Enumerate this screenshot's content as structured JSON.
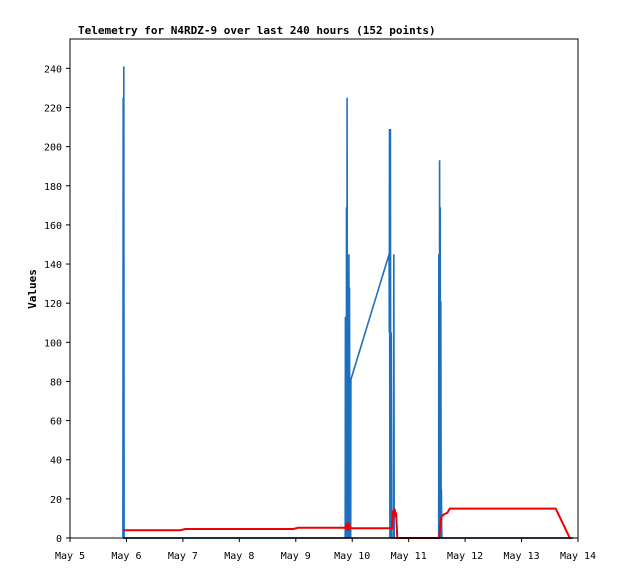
{
  "chart_data": {
    "type": "line",
    "title": "Telemetry for N4RDZ-9 over last 240 hours (152 points)",
    "xlabel": "",
    "ylabel": "Values",
    "x_ticks": [
      "May 5",
      "May 6",
      "May 7",
      "May 8",
      "May 9",
      "May 10",
      "May 11",
      "May 12",
      "May 13",
      "May 14"
    ],
    "y_ticks": [
      "0",
      "20",
      "40",
      "60",
      "80",
      "100",
      "120",
      "140",
      "160",
      "180",
      "200",
      "220",
      "240"
    ],
    "xlim": [
      "May 5 00:00",
      "May 14 00:00"
    ],
    "ylim": [
      0,
      255
    ],
    "grid": false,
    "series": [
      {
        "color": "#1f6fbf",
        "points": [
          [
            "May 5 22:30",
            0
          ],
          [
            "May 5 22:38",
            225
          ],
          [
            "May 5 22:45",
            0
          ],
          [
            "May 5 22:52",
            241
          ],
          [
            "May 5 23:00",
            0
          ],
          [
            "May 5 23:10",
            0
          ],
          [
            "May 9 21:00",
            0
          ],
          [
            "May 9 21:05",
            113
          ],
          [
            "May 9 21:15",
            0
          ],
          [
            "May 9 21:20",
            57
          ],
          [
            "May 9 21:30",
            0
          ],
          [
            "May 9 21:35",
            169
          ],
          [
            "May 9 21:45",
            0
          ],
          [
            "May 9 21:50",
            225
          ],
          [
            "May 9 22:00",
            0
          ],
          [
            "May 9 22:10",
            0
          ],
          [
            "May 9 22:20",
            0
          ],
          [
            "May 9 22:35",
            145
          ],
          [
            "May 9 22:45",
            0
          ],
          [
            "May 9 22:50",
            128
          ],
          [
            "May 9 23:00",
            0
          ],
          [
            "May 9 23:05",
            17
          ],
          [
            "May 9 23:10",
            0
          ],
          [
            "May 9 23:15",
            41
          ],
          [
            "May 9 23:20",
            0
          ],
          [
            "May 9 23:25",
            81
          ],
          [
            "May 10 15:40",
            145
          ],
          [
            "May 10 15:45",
            105
          ],
          [
            "May 10 15:50",
            209
          ],
          [
            "May 10 16:00",
            0
          ],
          [
            "May 10 16:05",
            105
          ],
          [
            "May 10 16:15",
            209
          ],
          [
            "May 10 16:25",
            0
          ],
          [
            "May 10 16:35",
            105
          ],
          [
            "May 10 16:45",
            0
          ],
          [
            "May 10 17:30",
            0
          ],
          [
            "May 10 17:40",
            145
          ],
          [
            "May 10 17:50",
            0
          ],
          [
            "May 11 12:45",
            0
          ],
          [
            "May 11 12:50",
            145
          ],
          [
            "May 11 12:55",
            0
          ],
          [
            "May 11 13:00",
            73
          ],
          [
            "May 11 13:05",
            0
          ],
          [
            "May 11 13:10",
            193
          ],
          [
            "May 11 13:20",
            0
          ],
          [
            "May 11 13:25",
            169
          ],
          [
            "May 11 13:35",
            0
          ],
          [
            "May 11 13:40",
            121
          ],
          [
            "May 11 13:50",
            0
          ],
          [
            "May 11 13:55",
            25
          ],
          [
            "May 11 14:05",
            0
          ],
          [
            "May 13 21:00",
            0
          ]
        ]
      },
      {
        "color": "#ee0000",
        "points": [
          [
            "May 5 22:30",
            4
          ],
          [
            "May 6 23:00",
            4
          ],
          [
            "May 7 01:00",
            4.6
          ],
          [
            "May 8 23:00",
            4.6
          ],
          [
            "May 9 01:00",
            5.2
          ],
          [
            "May 9 21:00",
            5.2
          ],
          [
            "May 9 21:30",
            6.5
          ],
          [
            "May 9 22:00",
            4
          ],
          [
            "May 9 22:20",
            8
          ],
          [
            "May 9 22:40",
            4
          ],
          [
            "May 9 23:00",
            6
          ],
          [
            "May 9 23:30",
            5
          ],
          [
            "May 10 17:00",
            5
          ],
          [
            "May 10 17:20",
            14
          ],
          [
            "May 10 17:40",
            11
          ],
          [
            "May 10 18:00",
            15
          ],
          [
            "May 10 18:20",
            12
          ],
          [
            "May 10 18:40",
            13
          ],
          [
            "May 10 19:10",
            0
          ],
          [
            "May 11 13:00",
            0
          ],
          [
            "May 11 13:30",
            7
          ],
          [
            "May 11 14:00",
            11
          ],
          [
            "May 11 15:00",
            12
          ],
          [
            "May 11 16:30",
            13
          ],
          [
            "May 11 17:30",
            15
          ],
          [
            "May 13 14:30",
            15
          ],
          [
            "May 13 20:30",
            0
          ],
          [
            "May 13 21:00",
            0
          ]
        ]
      },
      {
        "color": "#000000",
        "points": [
          [
            "May 5 22:30",
            0
          ],
          [
            "May 13 22:00",
            0
          ]
        ]
      }
    ]
  }
}
